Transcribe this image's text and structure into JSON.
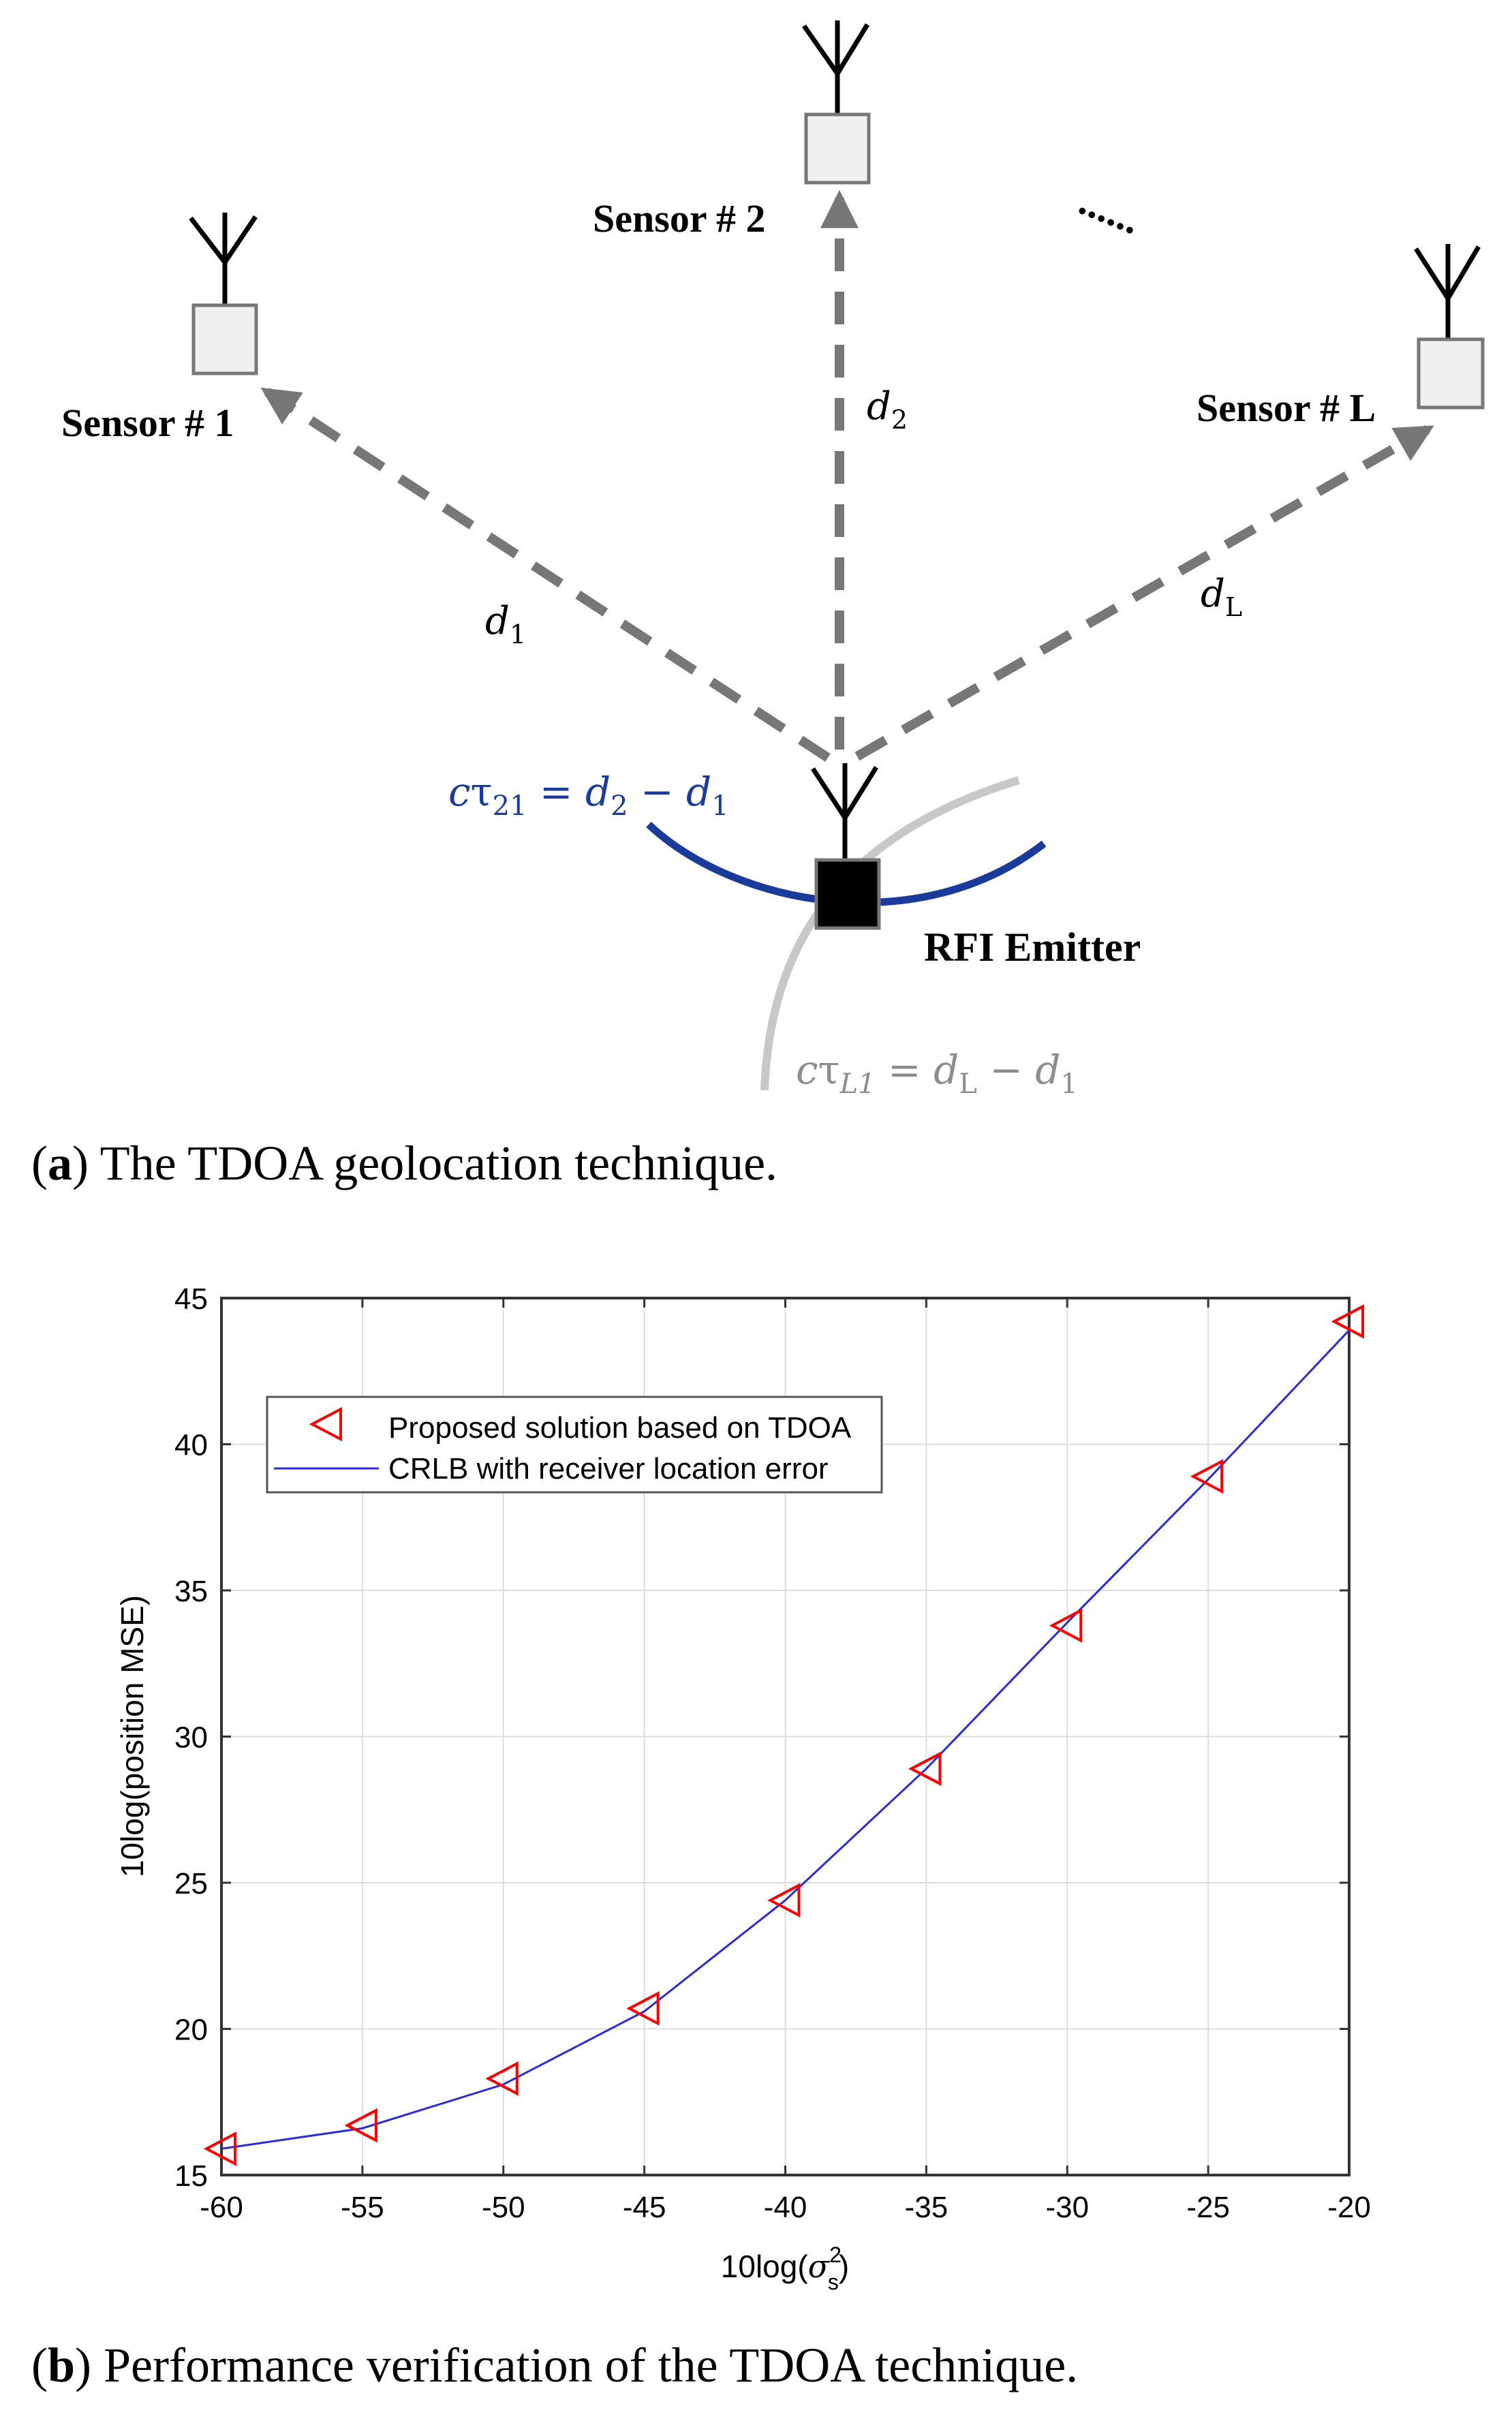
{
  "figure_a": {
    "sensors": [
      {
        "label": "Sensor # 1",
        "distance_label": "d",
        "distance_sub": "1"
      },
      {
        "label": "Sensor # 2",
        "distance_label": "d",
        "distance_sub": "2"
      },
      {
        "label": "Sensor # L",
        "distance_label": "d",
        "distance_sub": "L"
      }
    ],
    "ellipsis": "......",
    "emitter_label": "RFI Emitter",
    "tdoa_21": {
      "c": "c",
      "tau": "τ",
      "tau_sub": "21",
      "rest": " = d",
      "d2_sub": "2",
      "minus": " − d",
      "d1_sub": "1"
    },
    "tdoa_L1": {
      "c": "c",
      "tau": "τ",
      "tau_sub": "L1",
      "rest": " = d",
      "dL_sub": "L",
      "minus": " − d",
      "d1_sub": "1"
    },
    "colors": {
      "hyperbola_21": "#1a3a9c",
      "hyperbola_L1": "#c8c8c8",
      "arrow": "#777777",
      "sensor_fill": "#f0f0f0",
      "emitter_fill": "#000000"
    }
  },
  "caption_a": {
    "letter": "a",
    "text": ") The TDOA geolocation technique."
  },
  "chart_data": {
    "type": "line",
    "x": [
      -60,
      -55,
      -50,
      -45,
      -40,
      -35,
      -30,
      -25,
      -20
    ],
    "series": [
      {
        "name": "Proposed solution based on TDOA",
        "marker": "triangle-left",
        "color": "#ff0000",
        "values": [
          15.9,
          16.7,
          18.3,
          20.7,
          24.4,
          28.9,
          33.8,
          38.9,
          44.2
        ]
      },
      {
        "name": "CRLB with receiver location error",
        "marker": "none",
        "color": "#2b2bd9",
        "values": [
          15.9,
          16.6,
          18.1,
          20.6,
          24.4,
          28.9,
          33.9,
          38.8,
          43.9
        ]
      }
    ],
    "xlabel_prefix": "10log(",
    "xlabel_sigma": "σ",
    "xlabel_sup": "2",
    "xlabel_sub": "s",
    "xlabel_suffix": ")",
    "ylabel": "10log(position MSE)",
    "xlim": [
      -60,
      -20
    ],
    "ylim": [
      15,
      45
    ],
    "xticks": [
      -60,
      -55,
      -50,
      -45,
      -40,
      -35,
      -30,
      -25,
      -20
    ],
    "yticks": [
      15,
      20,
      25,
      30,
      35,
      40,
      45
    ],
    "grid": true,
    "legend_position": "top-left"
  },
  "caption_b": {
    "letter": "b",
    "text": ") Performance verification of the TDOA technique."
  }
}
